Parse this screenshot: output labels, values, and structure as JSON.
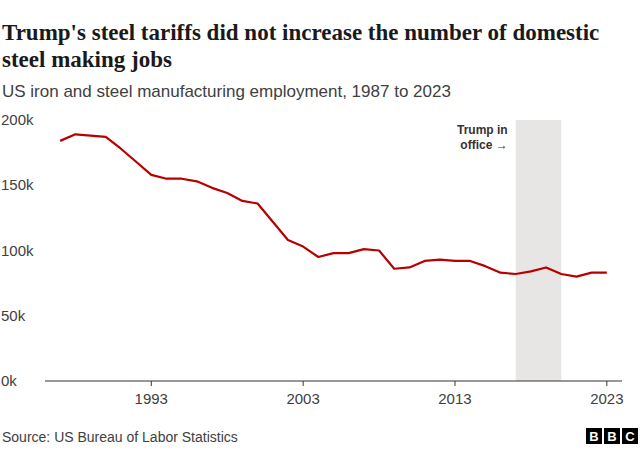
{
  "chart_data": {
    "type": "line",
    "title": "Trump's steel tariffs did not increase the number of domestic steel making jobs",
    "subtitle": "US iron and steel manufacturing employment, 1987 to 2023",
    "source": "Source: US Bureau of Labor Statistics",
    "logo": "BBC",
    "x": [
      1987,
      1988,
      1989,
      1990,
      1991,
      1992,
      1993,
      1994,
      1995,
      1996,
      1997,
      1998,
      1999,
      2000,
      2001,
      2002,
      2003,
      2004,
      2005,
      2006,
      2007,
      2008,
      2009,
      2010,
      2011,
      2012,
      2013,
      2014,
      2015,
      2016,
      2017,
      2018,
      2019,
      2020,
      2021,
      2022,
      2023
    ],
    "values": [
      184,
      189,
      188,
      187,
      178,
      168,
      158,
      155,
      155,
      153,
      148,
      144,
      138,
      136,
      122,
      108,
      103,
      95,
      98,
      98,
      101,
      100,
      86,
      87,
      92,
      93,
      92,
      92,
      88,
      83,
      82,
      84,
      87,
      82,
      80,
      83,
      83
    ],
    "color": "#b80000",
    "xlim": [
      1986,
      2024
    ],
    "xticks": [
      1993,
      2003,
      2013,
      2023
    ],
    "ylim": [
      0,
      200
    ],
    "yticks": [
      {
        "value": 0,
        "label": "0k"
      },
      {
        "value": 50,
        "label": "50k"
      },
      {
        "value": 100,
        "label": "100k"
      },
      {
        "value": 150,
        "label": "150k"
      },
      {
        "value": 200,
        "label": "200k"
      }
    ],
    "grid": false,
    "annotation": {
      "lines": [
        "Trump in",
        "office →"
      ],
      "x_start": 2017,
      "x_end": 2020
    }
  }
}
